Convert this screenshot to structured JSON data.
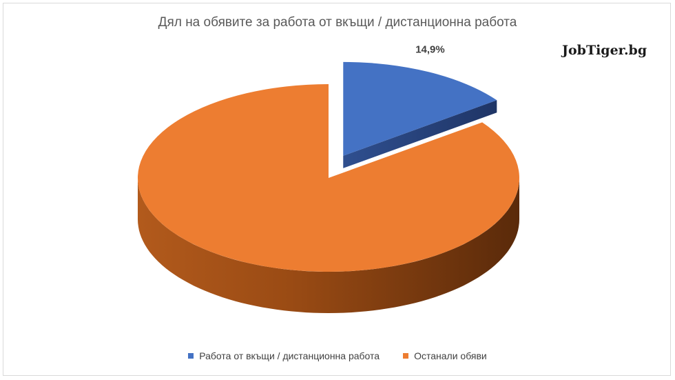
{
  "chart_data": {
    "type": "pie",
    "title": "Дял на обявите за работа от вкъщи / дистанционна работа",
    "categories": [
      "Работа от вкъщи / дистанционна работа",
      "Останали обяви"
    ],
    "values": [
      14.9,
      85.1
    ],
    "data_labels": [
      "14,9%",
      ""
    ],
    "legend_position": "bottom",
    "colors": [
      "#4472c4",
      "#ed7d31"
    ],
    "exploded_slice": 0
  },
  "branding": {
    "watermark": "JobTiger.bg"
  }
}
